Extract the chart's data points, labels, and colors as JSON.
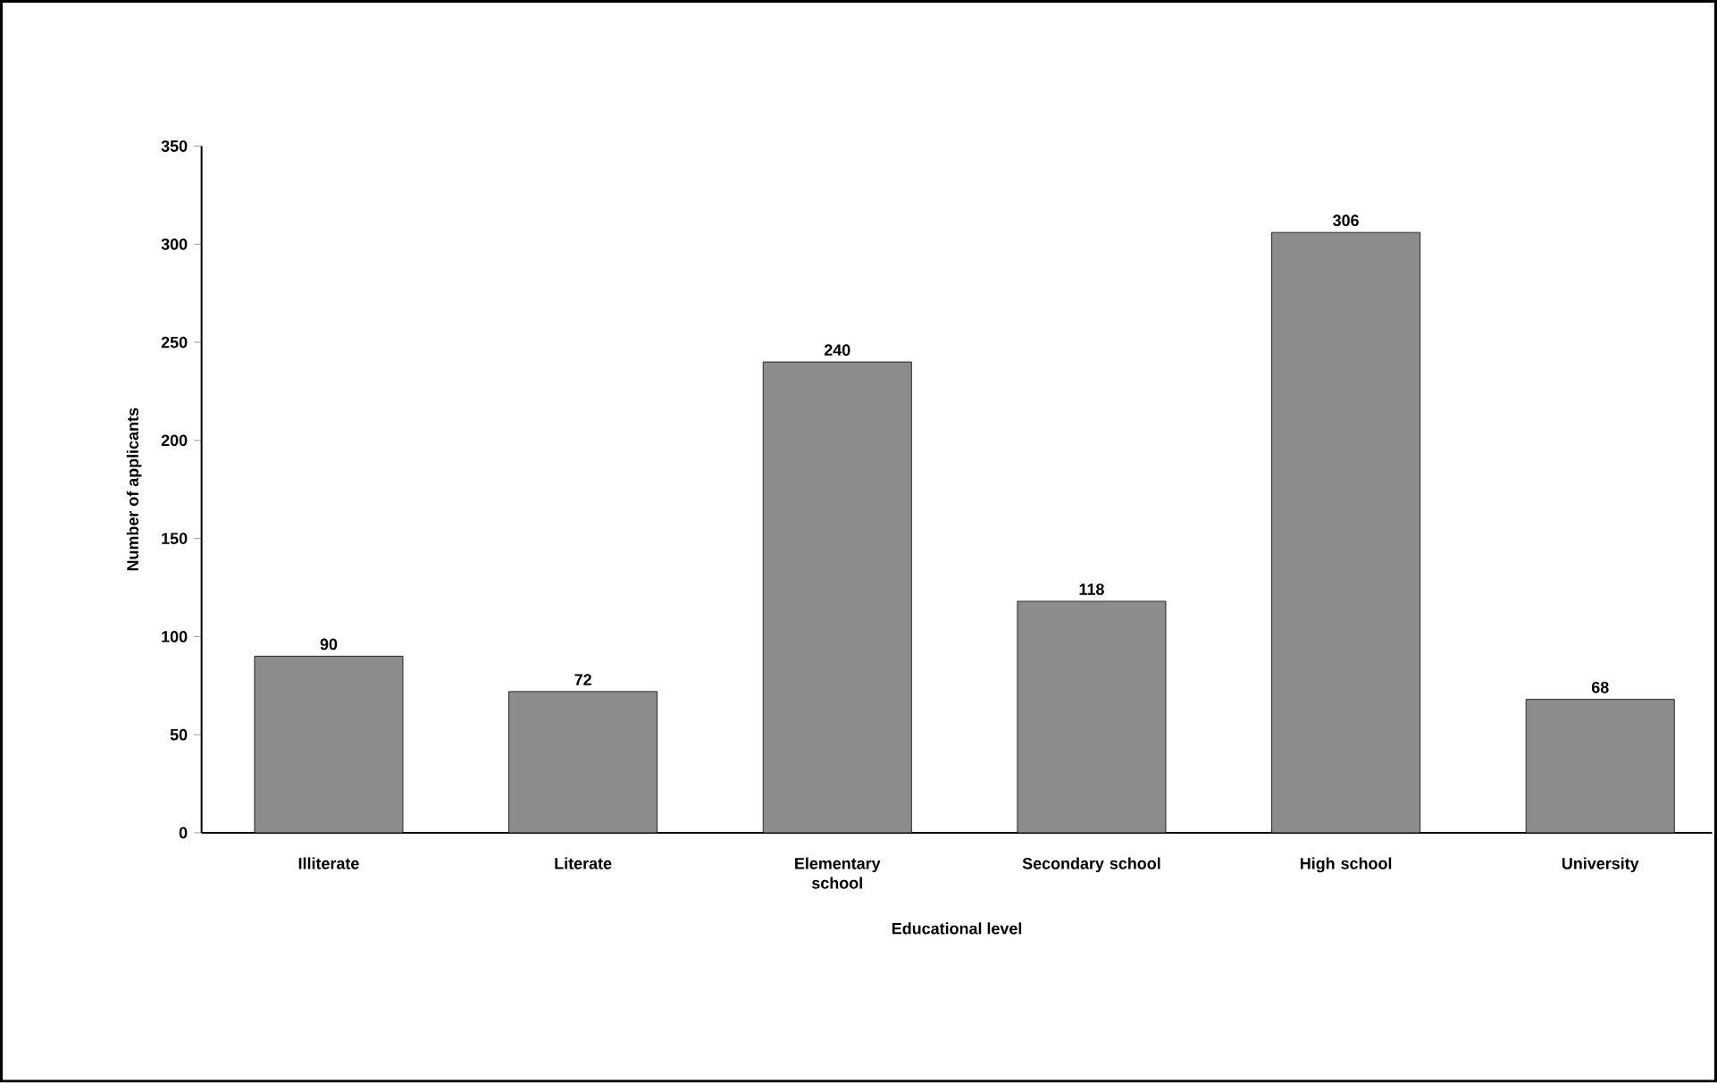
{
  "chart_data": {
    "type": "bar",
    "xlabel": "Educational level",
    "ylabel": "Number of applicants",
    "categories": [
      "Illiterate",
      "Literate",
      "Elementary school",
      "Secondary school",
      "High school",
      "University"
    ],
    "values": [
      90,
      72,
      240,
      118,
      306,
      68
    ],
    "color": "#8c8c8c",
    "ylim": [
      0,
      350
    ],
    "yticks": [
      0,
      50,
      100,
      150,
      200,
      250,
      300,
      350
    ],
    "data_labels": true
  }
}
